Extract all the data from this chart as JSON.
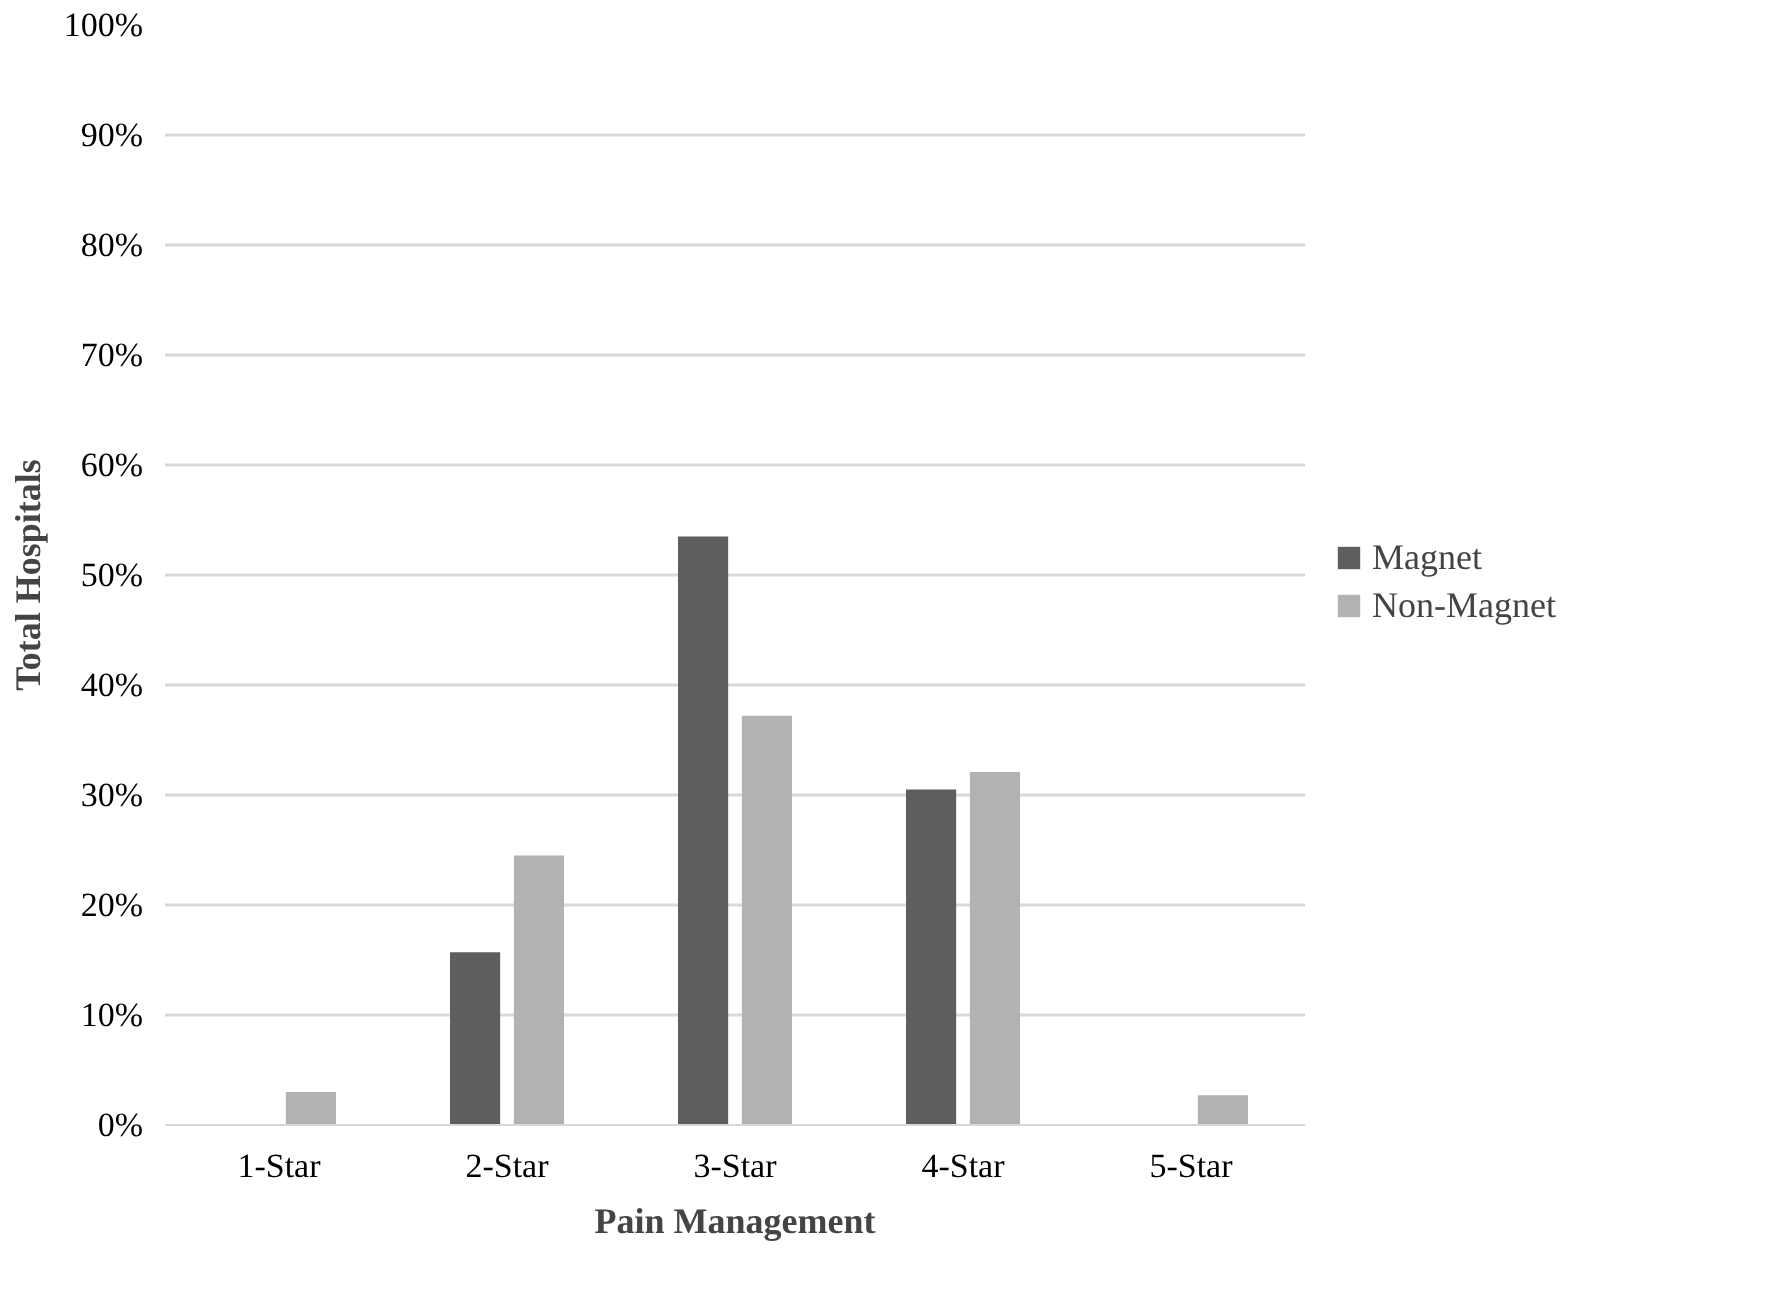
{
  "chart_data": {
    "type": "bar",
    "xlabel": "Pain Management",
    "ylabel": "Total Hospitals",
    "categories": [
      "1-Star",
      "2-Star",
      "3-Star",
      "4-Star",
      "5-Star"
    ],
    "series": [
      {
        "name": "Magnet",
        "color": "#5e5e5e",
        "values": [
          0,
          15.7,
          53.5,
          30.5,
          0
        ]
      },
      {
        "name": "Non-Magnet",
        "color": "#b2b2b2",
        "values": [
          3.0,
          24.5,
          37.2,
          32.1,
          2.7
        ]
      }
    ],
    "ylim": [
      0,
      100
    ],
    "yticks": [
      {
        "value": 0,
        "label": "0%"
      },
      {
        "value": 10,
        "label": "10%"
      },
      {
        "value": 20,
        "label": "20%"
      },
      {
        "value": 30,
        "label": "30%"
      },
      {
        "value": 40,
        "label": "40%"
      },
      {
        "value": 50,
        "label": "50%"
      },
      {
        "value": 60,
        "label": "60%"
      },
      {
        "value": 70,
        "label": "70%"
      },
      {
        "value": 80,
        "label": "80%"
      },
      {
        "value": 90,
        "label": "90%"
      },
      {
        "value": 100,
        "label": "100%"
      }
    ],
    "grid": "y",
    "legend": "right"
  }
}
